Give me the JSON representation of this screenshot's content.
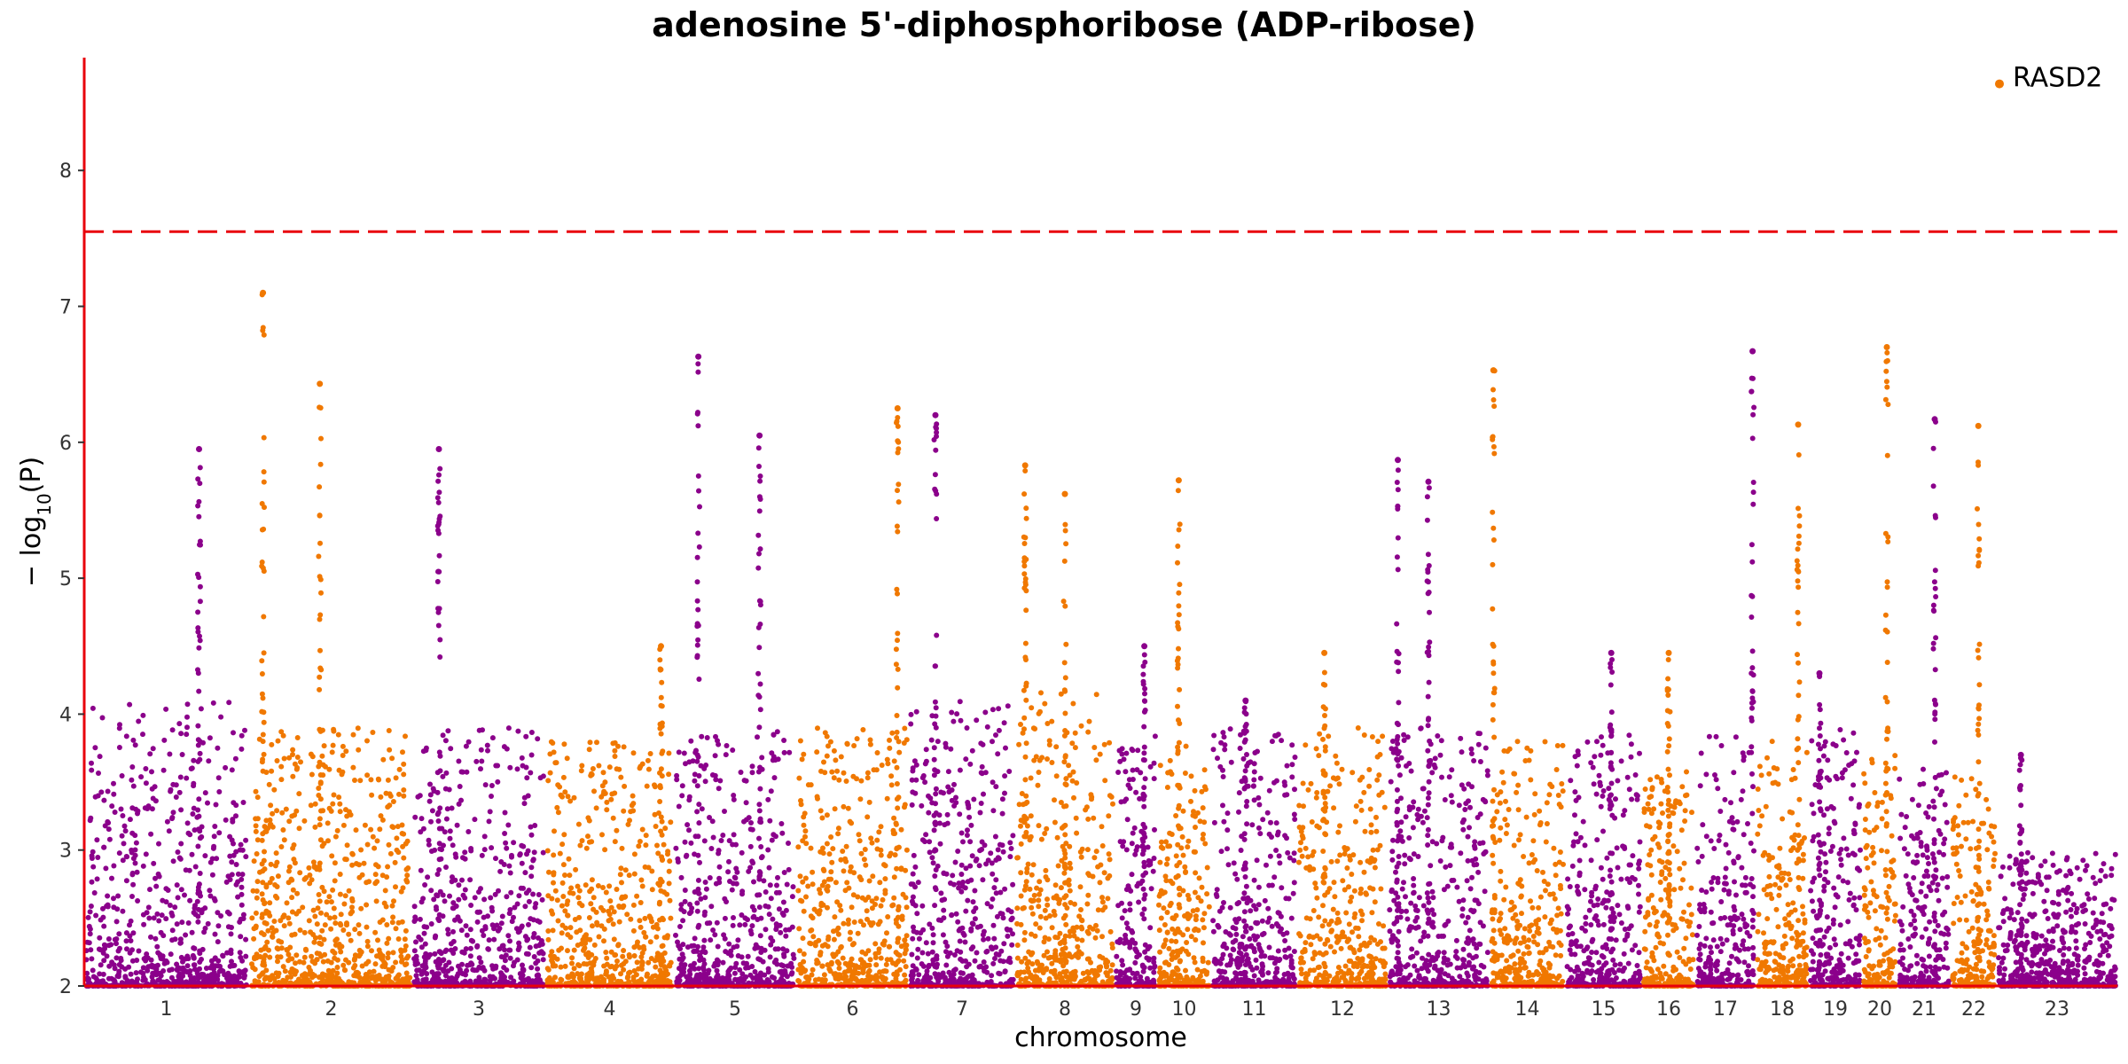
{
  "chart_data": {
    "type": "scatter",
    "title": "adenosine 5'-diphosphoribose (ADP-ribose)",
    "xlabel": "chromosome",
    "ylabel": "− log10(P)",
    "ylabel_main": "− log",
    "ylabel_sub": "10",
    "ylabel_tail": "(P)",
    "ylim": [
      2,
      8.83
    ],
    "yticks": [
      2,
      3,
      4,
      5,
      6,
      7,
      8
    ],
    "threshold": 7.55,
    "colors": {
      "odd": "#8b008b",
      "even": "#f07800",
      "axis": "#e8000b",
      "threshold": "#e8000b"
    },
    "chromosomes": [
      {
        "label": "1",
        "base": 4.1,
        "peaks": [
          [
            0.7,
            5.95
          ]
        ]
      },
      {
        "label": "2",
        "base": 3.9,
        "peaks": [
          [
            0.08,
            7.1
          ],
          [
            0.43,
            6.43
          ]
        ]
      },
      {
        "label": "3",
        "base": 3.9,
        "peaks": [
          [
            0.2,
            5.95
          ]
        ]
      },
      {
        "label": "4",
        "base": 3.8,
        "peaks": [
          [
            0.9,
            4.5
          ]
        ]
      },
      {
        "label": "5",
        "base": 3.9,
        "peaks": [
          [
            0.2,
            6.63
          ],
          [
            0.7,
            6.05
          ]
        ]
      },
      {
        "label": "6",
        "base": 3.9,
        "peaks": [
          [
            0.9,
            6.25
          ]
        ]
      },
      {
        "label": "7",
        "base": 4.1,
        "peaks": [
          [
            0.25,
            6.2
          ]
        ]
      },
      {
        "label": "8",
        "base": 4.2,
        "peaks": [
          [
            0.1,
            5.83
          ],
          [
            0.5,
            5.62
          ]
        ]
      },
      {
        "label": "9",
        "base": 3.9,
        "peaks": [
          [
            0.7,
            4.5
          ]
        ]
      },
      {
        "label": "10",
        "base": 3.8,
        "peaks": [
          [
            0.4,
            5.72
          ]
        ]
      },
      {
        "label": "11",
        "base": 3.9,
        "peaks": [
          [
            0.4,
            4.1
          ]
        ]
      },
      {
        "label": "12",
        "base": 3.9,
        "peaks": [
          [
            0.3,
            4.45
          ]
        ]
      },
      {
        "label": "13",
        "base": 3.9,
        "peaks": [
          [
            0.1,
            5.87
          ],
          [
            0.4,
            5.71
          ]
        ]
      },
      {
        "label": "14",
        "base": 3.8,
        "peaks": [
          [
            0.05,
            6.53
          ]
        ]
      },
      {
        "label": "15",
        "base": 3.9,
        "peaks": [
          [
            0.6,
            4.45
          ]
        ]
      },
      {
        "label": "16",
        "base": 3.6,
        "peaks": [
          [
            0.5,
            4.45
          ]
        ]
      },
      {
        "label": "17",
        "base": 3.9,
        "peaks": [
          [
            0.95,
            6.67
          ]
        ]
      },
      {
        "label": "18",
        "base": 3.8,
        "peaks": [
          [
            0.8,
            6.13
          ]
        ]
      },
      {
        "label": "19",
        "base": 3.9,
        "peaks": [
          [
            0.2,
            4.3
          ]
        ]
      },
      {
        "label": "20",
        "base": 3.7,
        "peaks": [
          [
            0.7,
            6.7
          ]
        ]
      },
      {
        "label": "21",
        "base": 3.6,
        "peaks": [
          [
            0.7,
            6.17
          ]
        ]
      },
      {
        "label": "22",
        "base": 3.6,
        "peaks": [
          [
            0.6,
            6.12
          ]
        ]
      },
      {
        "label": "23",
        "base": 3.0,
        "peaks": [
          [
            0.2,
            3.7
          ]
        ]
      }
    ],
    "annotation": {
      "label": "RASD2",
      "chromosome": "22",
      "y": 8.65
    }
  }
}
